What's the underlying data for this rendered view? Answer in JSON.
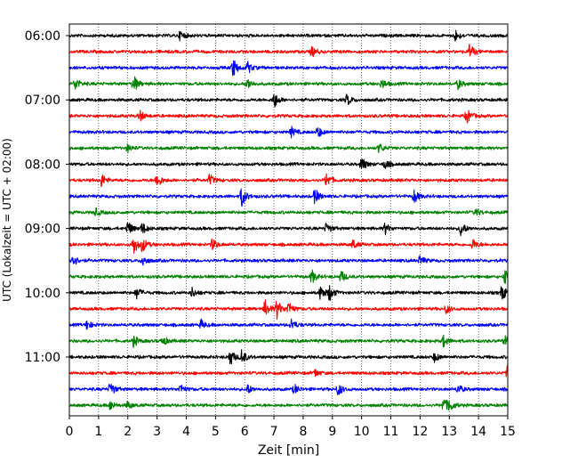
{
  "chart_data": {
    "type": "line",
    "title": "",
    "xlabel": "Zeit  [min]",
    "ylabel": "UTC (Lokalzeit = UTC + 02:00)",
    "xlim": [
      0,
      15
    ],
    "x_ticks": [
      "0",
      "1",
      "2",
      "3",
      "4",
      "5",
      "6",
      "7",
      "8",
      "9",
      "10",
      "11",
      "12",
      "13",
      "14",
      "15"
    ],
    "y_tick_labels": [
      "06:00",
      "07:00",
      "08:00",
      "09:00",
      "10:00",
      "11:00"
    ],
    "grid": "vertical dotted at every minute",
    "trace_start": "06:00",
    "trace_interval_min": 15,
    "trace_count": 24,
    "trace_colors": [
      "#000000",
      "#ff0000",
      "#0000ff",
      "#008000"
    ],
    "traces": [
      {
        "start": "06:00",
        "color": "#000000",
        "events": [
          {
            "t": 3.8,
            "amp": 0.5
          },
          {
            "t": 13.2,
            "amp": 0.6
          }
        ]
      },
      {
        "start": "06:15",
        "color": "#ff0000",
        "events": [
          {
            "t": 8.3,
            "amp": 0.5
          },
          {
            "t": 13.7,
            "amp": 0.8
          }
        ]
      },
      {
        "start": "06:30",
        "color": "#0000ff",
        "events": [
          {
            "t": 5.6,
            "amp": 1.0
          },
          {
            "t": 6.1,
            "amp": 0.6
          }
        ]
      },
      {
        "start": "06:45",
        "color": "#008000",
        "events": [
          {
            "t": 0.2,
            "amp": 0.7
          },
          {
            "t": 2.2,
            "amp": 0.9
          },
          {
            "t": 6.1,
            "amp": 0.6
          },
          {
            "t": 10.7,
            "amp": 0.5
          },
          {
            "t": 13.3,
            "amp": 0.5
          }
        ]
      },
      {
        "start": "07:00",
        "color": "#000000",
        "events": [
          {
            "t": 7.0,
            "amp": 0.9
          },
          {
            "t": 9.5,
            "amp": 0.6
          }
        ]
      },
      {
        "start": "07:15",
        "color": "#ff0000",
        "events": [
          {
            "t": 2.4,
            "amp": 0.6
          },
          {
            "t": 13.6,
            "amp": 0.8
          }
        ]
      },
      {
        "start": "07:30",
        "color": "#0000ff",
        "events": [
          {
            "t": 7.6,
            "amp": 0.5
          },
          {
            "t": 8.5,
            "amp": 0.6
          }
        ]
      },
      {
        "start": "07:45",
        "color": "#008000",
        "events": [
          {
            "t": 2.0,
            "amp": 0.4
          },
          {
            "t": 10.6,
            "amp": 0.5
          }
        ]
      },
      {
        "start": "08:00",
        "color": "#000000",
        "events": [
          {
            "t": 10.0,
            "amp": 0.8
          },
          {
            "t": 10.8,
            "amp": 0.5
          }
        ]
      },
      {
        "start": "08:15",
        "color": "#ff0000",
        "events": [
          {
            "t": 1.1,
            "amp": 0.7
          },
          {
            "t": 3.0,
            "amp": 0.8
          },
          {
            "t": 4.8,
            "amp": 0.6
          },
          {
            "t": 8.8,
            "amp": 0.8
          }
        ]
      },
      {
        "start": "08:30",
        "color": "#0000ff",
        "events": [
          {
            "t": 5.9,
            "amp": 1.1
          },
          {
            "t": 8.4,
            "amp": 0.8
          },
          {
            "t": 11.8,
            "amp": 0.7
          }
        ]
      },
      {
        "start": "08:45",
        "color": "#008000",
        "events": [
          {
            "t": 0.9,
            "amp": 0.4
          },
          {
            "t": 13.9,
            "amp": 0.4
          }
        ]
      },
      {
        "start": "09:00",
        "color": "#000000",
        "events": [
          {
            "t": 2.0,
            "amp": 0.8
          },
          {
            "t": 2.5,
            "amp": 0.6
          },
          {
            "t": 8.8,
            "amp": 0.6
          },
          {
            "t": 10.8,
            "amp": 0.6
          },
          {
            "t": 13.4,
            "amp": 0.8
          }
        ]
      },
      {
        "start": "09:15",
        "color": "#ff0000",
        "events": [
          {
            "t": 2.2,
            "amp": 1.0
          },
          {
            "t": 2.5,
            "amp": 0.7
          },
          {
            "t": 4.9,
            "amp": 0.6
          },
          {
            "t": 9.7,
            "amp": 0.5
          },
          {
            "t": 13.8,
            "amp": 0.6
          }
        ]
      },
      {
        "start": "09:30",
        "color": "#0000ff",
        "events": [
          {
            "t": 0.1,
            "amp": 0.8
          },
          {
            "t": 2.5,
            "amp": 0.6
          },
          {
            "t": 12.0,
            "amp": 0.5
          }
        ]
      },
      {
        "start": "09:45",
        "color": "#008000",
        "events": [
          {
            "t": 8.3,
            "amp": 0.7
          },
          {
            "t": 9.3,
            "amp": 0.6
          },
          {
            "t": 14.9,
            "amp": 0.8
          }
        ]
      },
      {
        "start": "10:00",
        "color": "#000000",
        "events": [
          {
            "t": 2.3,
            "amp": 0.6
          },
          {
            "t": 4.2,
            "amp": 0.5
          },
          {
            "t": 8.6,
            "amp": 0.8
          },
          {
            "t": 8.9,
            "amp": 0.8
          },
          {
            "t": 14.8,
            "amp": 0.8
          }
        ]
      },
      {
        "start": "10:15",
        "color": "#ff0000",
        "events": [
          {
            "t": 6.7,
            "amp": 0.9
          },
          {
            "t": 7.1,
            "amp": 1.0
          },
          {
            "t": 7.5,
            "amp": 0.7
          },
          {
            "t": 12.9,
            "amp": 0.5
          }
        ]
      },
      {
        "start": "10:30",
        "color": "#0000ff",
        "events": [
          {
            "t": 0.6,
            "amp": 0.5
          },
          {
            "t": 4.5,
            "amp": 0.5
          },
          {
            "t": 7.6,
            "amp": 0.6
          }
        ]
      },
      {
        "start": "10:45",
        "color": "#008000",
        "events": [
          {
            "t": 2.2,
            "amp": 0.6
          },
          {
            "t": 3.2,
            "amp": 0.5
          },
          {
            "t": 12.8,
            "amp": 0.6
          },
          {
            "t": 14.9,
            "amp": 0.5
          }
        ]
      },
      {
        "start": "11:00",
        "color": "#000000",
        "events": [
          {
            "t": 5.5,
            "amp": 0.9
          },
          {
            "t": 5.9,
            "amp": 0.8
          },
          {
            "t": 12.5,
            "amp": 0.5
          }
        ]
      },
      {
        "start": "11:15",
        "color": "#ff0000",
        "events": [
          {
            "t": 8.4,
            "amp": 0.4
          },
          {
            "t": 15.0,
            "amp": 1.0
          }
        ]
      },
      {
        "start": "11:30",
        "color": "#0000ff",
        "events": [
          {
            "t": 1.4,
            "amp": 0.8
          },
          {
            "t": 3.8,
            "amp": 0.5
          },
          {
            "t": 6.1,
            "amp": 0.5
          },
          {
            "t": 7.7,
            "amp": 0.5
          },
          {
            "t": 9.2,
            "amp": 0.7
          },
          {
            "t": 13.3,
            "amp": 0.5
          }
        ]
      },
      {
        "start": "11:45",
        "color": "#008000",
        "events": [
          {
            "t": 1.4,
            "amp": 0.5
          },
          {
            "t": 2.0,
            "amp": 0.4
          },
          {
            "t": 12.8,
            "amp": 0.8
          },
          {
            "t": 13.0,
            "amp": 0.6
          }
        ]
      }
    ]
  }
}
